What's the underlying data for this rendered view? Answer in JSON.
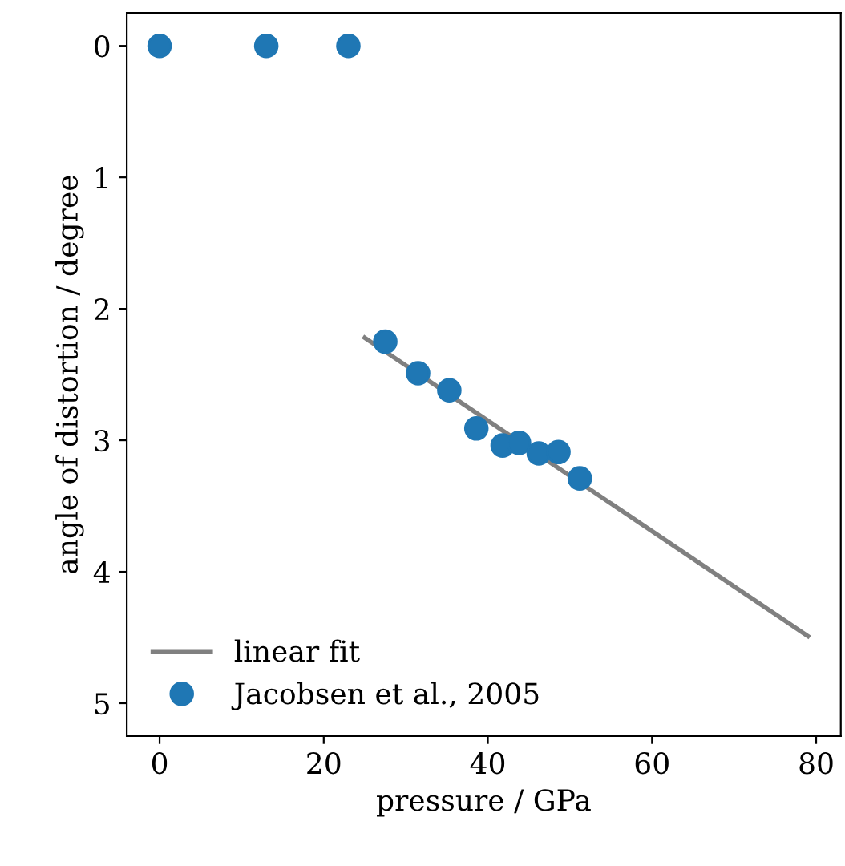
{
  "chart_data": {
    "type": "scatter",
    "xlabel": "pressure / GPa",
    "ylabel": "angle of distortion / degree",
    "series": [
      {
        "name": "linear fit",
        "type": "line",
        "color": "#808080",
        "x": [
          25,
          79
        ],
        "values": [
          2.22,
          4.49
        ]
      },
      {
        "name": "Jacobsen et al., 2005",
        "marker": "circle",
        "color": "#1f77b4",
        "x": [
          0,
          13,
          23,
          27.5,
          31.5,
          35.3,
          38.6,
          41.8,
          43.8,
          46.2,
          48.6,
          51.2
        ],
        "values": [
          0,
          0,
          0,
          2.25,
          2.49,
          2.62,
          2.91,
          3.04,
          3.02,
          3.1,
          3.09,
          3.29
        ]
      }
    ],
    "xlim": [
      -4,
      83
    ],
    "xticks": [
      0,
      20,
      40,
      60,
      80
    ],
    "ylim": [
      5.25,
      -0.25
    ],
    "yticks": [
      0,
      1,
      2,
      3,
      4,
      5
    ],
    "grid": false,
    "legend": "bottom left"
  }
}
